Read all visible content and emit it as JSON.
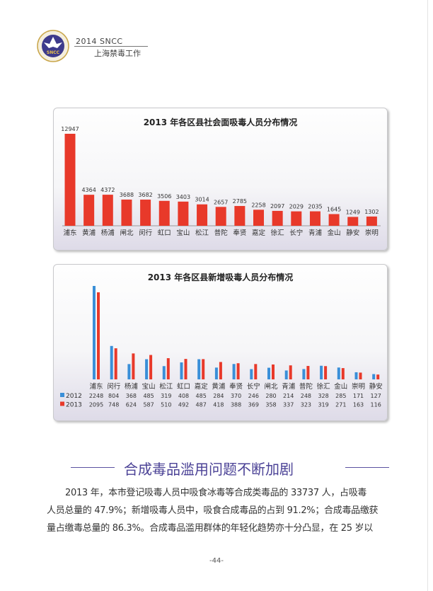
{
  "header": {
    "line1": "2014  SNCC",
    "line2": "上海禁毒工作",
    "logo_text": "SNCC"
  },
  "chart_data": [
    {
      "type": "bar",
      "title": "2013 年各区县社会面吸毒人员分布情况",
      "categories": [
        "浦东",
        "黄浦",
        "杨浦",
        "闸北",
        "闵行",
        "虹口",
        "宝山",
        "松江",
        "普陀",
        "奉贤",
        "嘉定",
        "徐汇",
        "长宁",
        "青浦",
        "金山",
        "静安",
        "崇明"
      ],
      "values": [
        12947,
        4364,
        4372,
        3688,
        3682,
        3506,
        3403,
        3014,
        2657,
        2785,
        2258,
        2097,
        2029,
        2035,
        1645,
        1249,
        1302
      ],
      "color": "#e8392a",
      "xlabel": "",
      "ylabel": ""
    },
    {
      "type": "bar",
      "title": "2013 年各区县新增吸毒人员分布情况",
      "categories": [
        "浦东",
        "闵行",
        "杨浦",
        "宝山",
        "松江",
        "虹口",
        "嘉定",
        "黄浦",
        "奉贤",
        "长宁",
        "闸北",
        "青浦",
        "普陀",
        "徐汇",
        "金山",
        "崇明",
        "静安"
      ],
      "series": [
        {
          "name": "2012",
          "color": "#3a8fd8",
          "values": [
            2248,
            804,
            368,
            485,
            319,
            408,
            485,
            284,
            370,
            246,
            280,
            214,
            248,
            328,
            285,
            171,
            127
          ]
        },
        {
          "name": "2013",
          "color": "#e8392a",
          "values": [
            2095,
            748,
            624,
            587,
            510,
            492,
            487,
            418,
            388,
            369,
            358,
            337,
            323,
            319,
            271,
            163,
            116
          ]
        }
      ],
      "legend": "bottom-left table"
    }
  ],
  "section": {
    "title": "合成毒品滥用问题不断加剧"
  },
  "paragraph": [
    "2013 年，本市登记吸毒人员中吸食冰毒等合成类毒品的 33737 人，占吸毒",
    "人员总量的 47.9%；新增吸毒人员中，吸食合成毒品的占到 91.2%；合成毒品缴获",
    "量占缴毒总量的 86.3%。合成毒品滥用群体的年轻化趋势亦十分凸显，在 25 岁以"
  ],
  "page_number": "-44-"
}
